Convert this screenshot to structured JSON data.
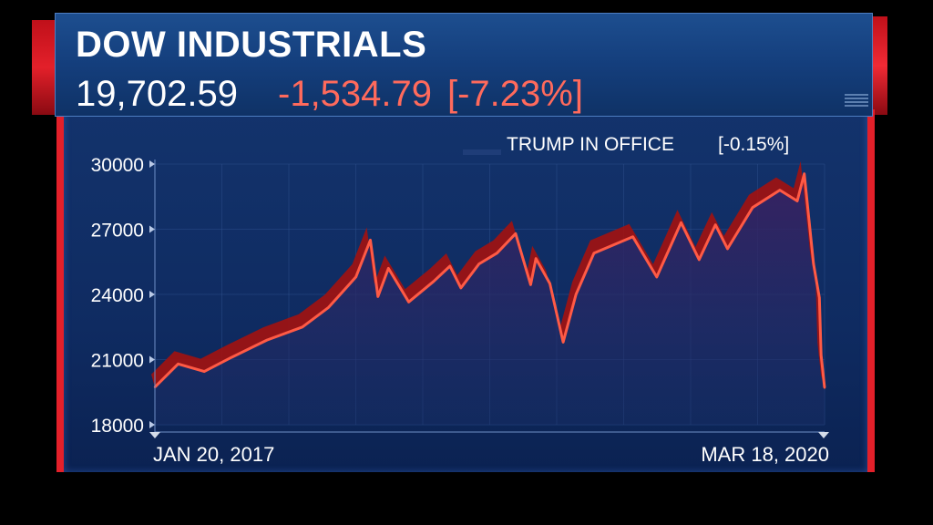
{
  "header": {
    "title": "DOW INDUSTRIALS",
    "value": "19,702.59",
    "change": "-1,534.79",
    "change_pct": "[-7.23%]"
  },
  "legend": {
    "label": "TRUMP IN OFFICE",
    "value": "[-0.15%]"
  },
  "colors": {
    "line": "#ff5a45",
    "ribbon": "#a3120f",
    "panel": "#13336c",
    "text": "#ffffff"
  },
  "chart_data": {
    "type": "line",
    "title": "DOW INDUSTRIALS",
    "xlabel": "",
    "ylabel": "",
    "ylim": [
      18000,
      30000
    ],
    "yticks": [
      30000,
      27000,
      24000,
      21000,
      18000
    ],
    "ytick_labels": [
      "30000",
      "27000",
      "24000",
      "21000",
      "18000"
    ],
    "x_start_label": "JAN 20, 2017",
    "x_end_label": "MAR 18, 2020",
    "series": [
      {
        "name": "TRUMP IN OFFICE",
        "x": [
          "2017-01-20",
          "2017-03-01",
          "2017-04-15",
          "2017-06-01",
          "2017-08-01",
          "2017-10-01",
          "2017-11-15",
          "2018-01-01",
          "2018-01-26",
          "2018-02-08",
          "2018-02-26",
          "2018-04-02",
          "2018-05-15",
          "2018-06-12",
          "2018-07-01",
          "2018-08-01",
          "2018-09-01",
          "2018-10-03",
          "2018-10-29",
          "2018-11-07",
          "2018-12-01",
          "2018-12-24",
          "2019-01-15",
          "2019-02-15",
          "2019-04-23",
          "2019-06-03",
          "2019-07-15",
          "2019-08-15",
          "2019-09-12",
          "2019-10-03",
          "2019-11-15",
          "2020-01-01",
          "2020-01-31",
          "2020-02-12",
          "2020-02-28",
          "2020-03-09",
          "2020-03-12",
          "2020-03-18"
        ],
        "y": [
          19732,
          20800,
          20450,
          21100,
          21900,
          22500,
          23400,
          24800,
          26500,
          23900,
          25200,
          23650,
          24600,
          25300,
          24300,
          25400,
          25900,
          26800,
          24450,
          25650,
          24500,
          21800,
          24000,
          25900,
          26650,
          24800,
          27300,
          25600,
          27200,
          26100,
          28000,
          28800,
          28300,
          29550,
          25400,
          23850,
          21200,
          19702
        ]
      }
    ]
  }
}
